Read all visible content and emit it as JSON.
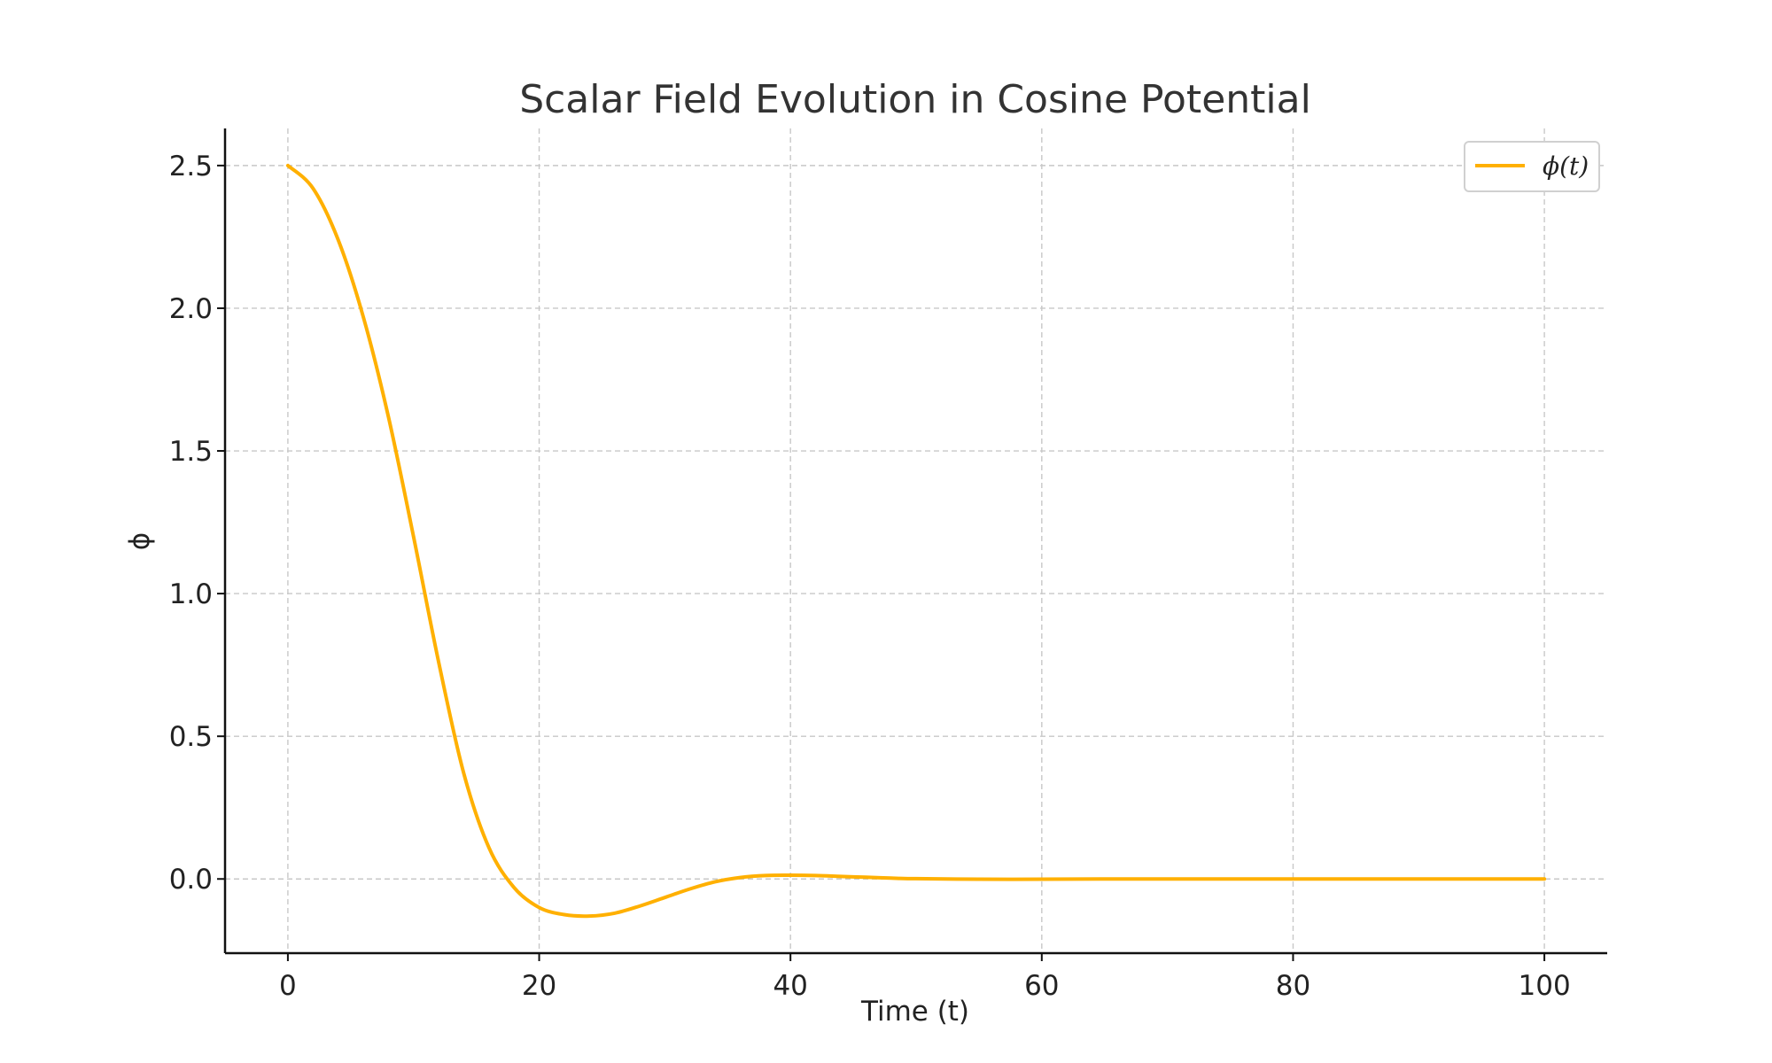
{
  "chart_data": {
    "type": "line",
    "title": "Scalar Field Evolution in Cosine Potential",
    "xlabel": "Time (t)",
    "ylabel": "ϕ",
    "xlim": [
      -5,
      105
    ],
    "ylim": [
      -0.26,
      2.63
    ],
    "grid": true,
    "legend_position": "top-right",
    "x_ticks": [
      0,
      20,
      40,
      60,
      80,
      100
    ],
    "x_tick_labels": [
      "0",
      "20",
      "40",
      "60",
      "80",
      "100"
    ],
    "y_ticks": [
      0.0,
      0.5,
      1.0,
      1.5,
      2.0,
      2.5
    ],
    "y_tick_labels": [
      "0.0",
      "0.5",
      "1.0",
      "1.5",
      "2.0",
      "2.5"
    ],
    "series": [
      {
        "name": "ϕ(t)",
        "color": "#FFB000",
        "x": [
          0,
          2,
          4,
          6,
          8,
          10,
          12,
          14,
          16,
          18,
          20,
          22,
          24,
          26,
          28,
          30,
          32,
          34,
          36,
          38,
          40,
          42,
          44,
          46,
          48,
          50,
          55,
          60,
          65,
          70,
          75,
          80,
          85,
          90,
          95,
          100
        ],
        "y": [
          2.5,
          2.42,
          2.24,
          1.97,
          1.62,
          1.2,
          0.76,
          0.37,
          0.11,
          -0.03,
          -0.1,
          -0.125,
          -0.13,
          -0.12,
          -0.095,
          -0.065,
          -0.035,
          -0.01,
          0.005,
          0.012,
          0.013,
          0.012,
          0.009,
          0.006,
          0.003,
          0.001,
          -0.001,
          -0.001,
          0.0,
          0.0,
          0.0,
          0.0,
          0.0,
          0.0,
          0.0,
          0.0
        ]
      }
    ]
  }
}
